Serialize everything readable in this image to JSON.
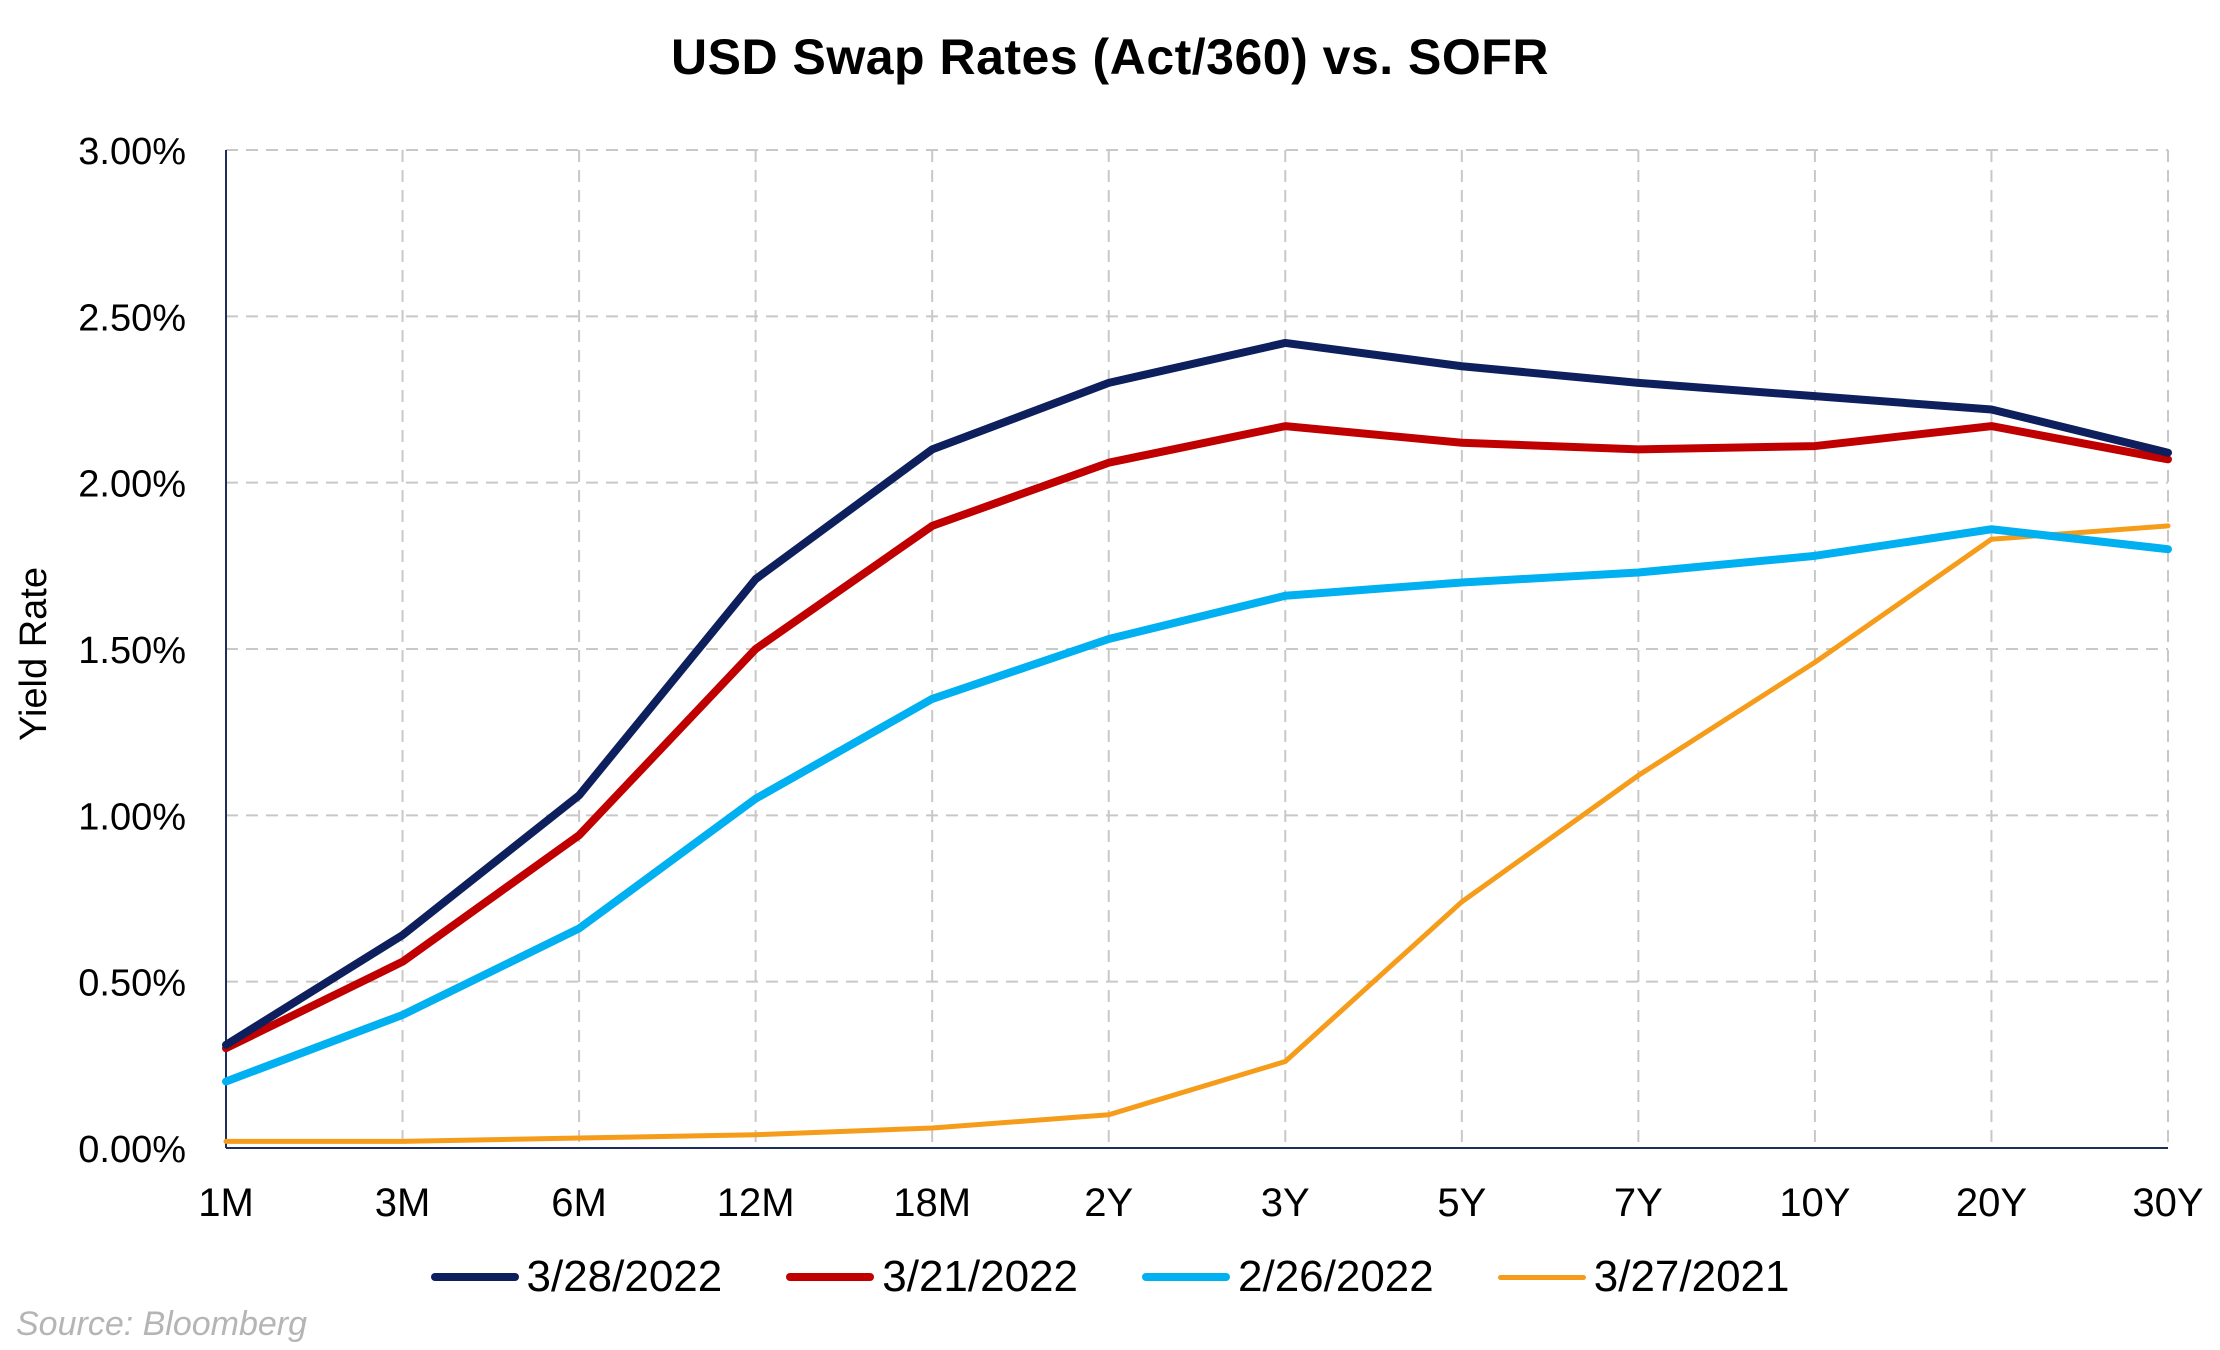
{
  "chart_data": {
    "type": "line",
    "title": "USD Swap Rates (Act/360) vs. SOFR",
    "ylabel": "Yield Rate",
    "xlabel": "",
    "categories": [
      "1M",
      "3M",
      "6M",
      "12M",
      "18M",
      "2Y",
      "3Y",
      "5Y",
      "7Y",
      "10Y",
      "20Y",
      "30Y"
    ],
    "yticks": [
      "0.00%",
      "0.50%",
      "1.00%",
      "1.50%",
      "2.00%",
      "2.50%",
      "3.00%"
    ],
    "ylim": [
      0,
      3.0
    ],
    "grid": true,
    "legend_position": "bottom",
    "series": [
      {
        "name": "3/28/2022",
        "color": "#0d1f5c",
        "values": [
          0.31,
          0.64,
          1.06,
          1.71,
          2.1,
          2.3,
          2.42,
          2.35,
          2.3,
          2.26,
          2.22,
          2.09
        ]
      },
      {
        "name": "3/21/2022",
        "color": "#c00000",
        "values": [
          0.3,
          0.56,
          0.94,
          1.5,
          1.87,
          2.06,
          2.17,
          2.12,
          2.1,
          2.11,
          2.17,
          2.07
        ]
      },
      {
        "name": "2/26/2022",
        "color": "#00b0f0",
        "values": [
          0.2,
          0.4,
          0.66,
          1.05,
          1.35,
          1.53,
          1.66,
          1.7,
          1.73,
          1.78,
          1.86,
          1.8
        ]
      },
      {
        "name": "3/27/2021",
        "color": "#f59c1a",
        "values": [
          0.02,
          0.02,
          0.03,
          0.04,
          0.06,
          0.1,
          0.26,
          0.74,
          1.12,
          1.46,
          1.83,
          1.87
        ]
      }
    ],
    "source_note": "Source: Bloomberg"
  }
}
